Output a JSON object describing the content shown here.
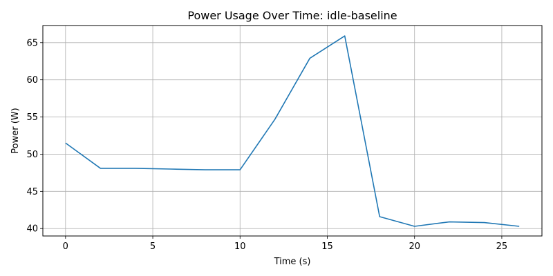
{
  "chart_data": {
    "type": "line",
    "title": "Power Usage Over Time: idle-baseline",
    "xlabel": "Time (s)",
    "ylabel": "Power (W)",
    "xlim": [
      -1.3,
      27.3
    ],
    "ylim": [
      39.0,
      67.3
    ],
    "xticks": [
      0,
      5,
      10,
      15,
      20,
      25
    ],
    "yticks": [
      40,
      45,
      50,
      55,
      60,
      65
    ],
    "grid": true,
    "series": [
      {
        "x": [
          0,
          2,
          4,
          6,
          8,
          10,
          12,
          14,
          16,
          18,
          20,
          22,
          24,
          26
        ],
        "values": [
          51.5,
          48.1,
          48.1,
          48.0,
          47.9,
          47.9,
          54.7,
          62.9,
          65.9,
          41.6,
          40.3,
          40.9,
          40.8,
          40.3
        ],
        "color": "#1f77b4"
      }
    ]
  }
}
